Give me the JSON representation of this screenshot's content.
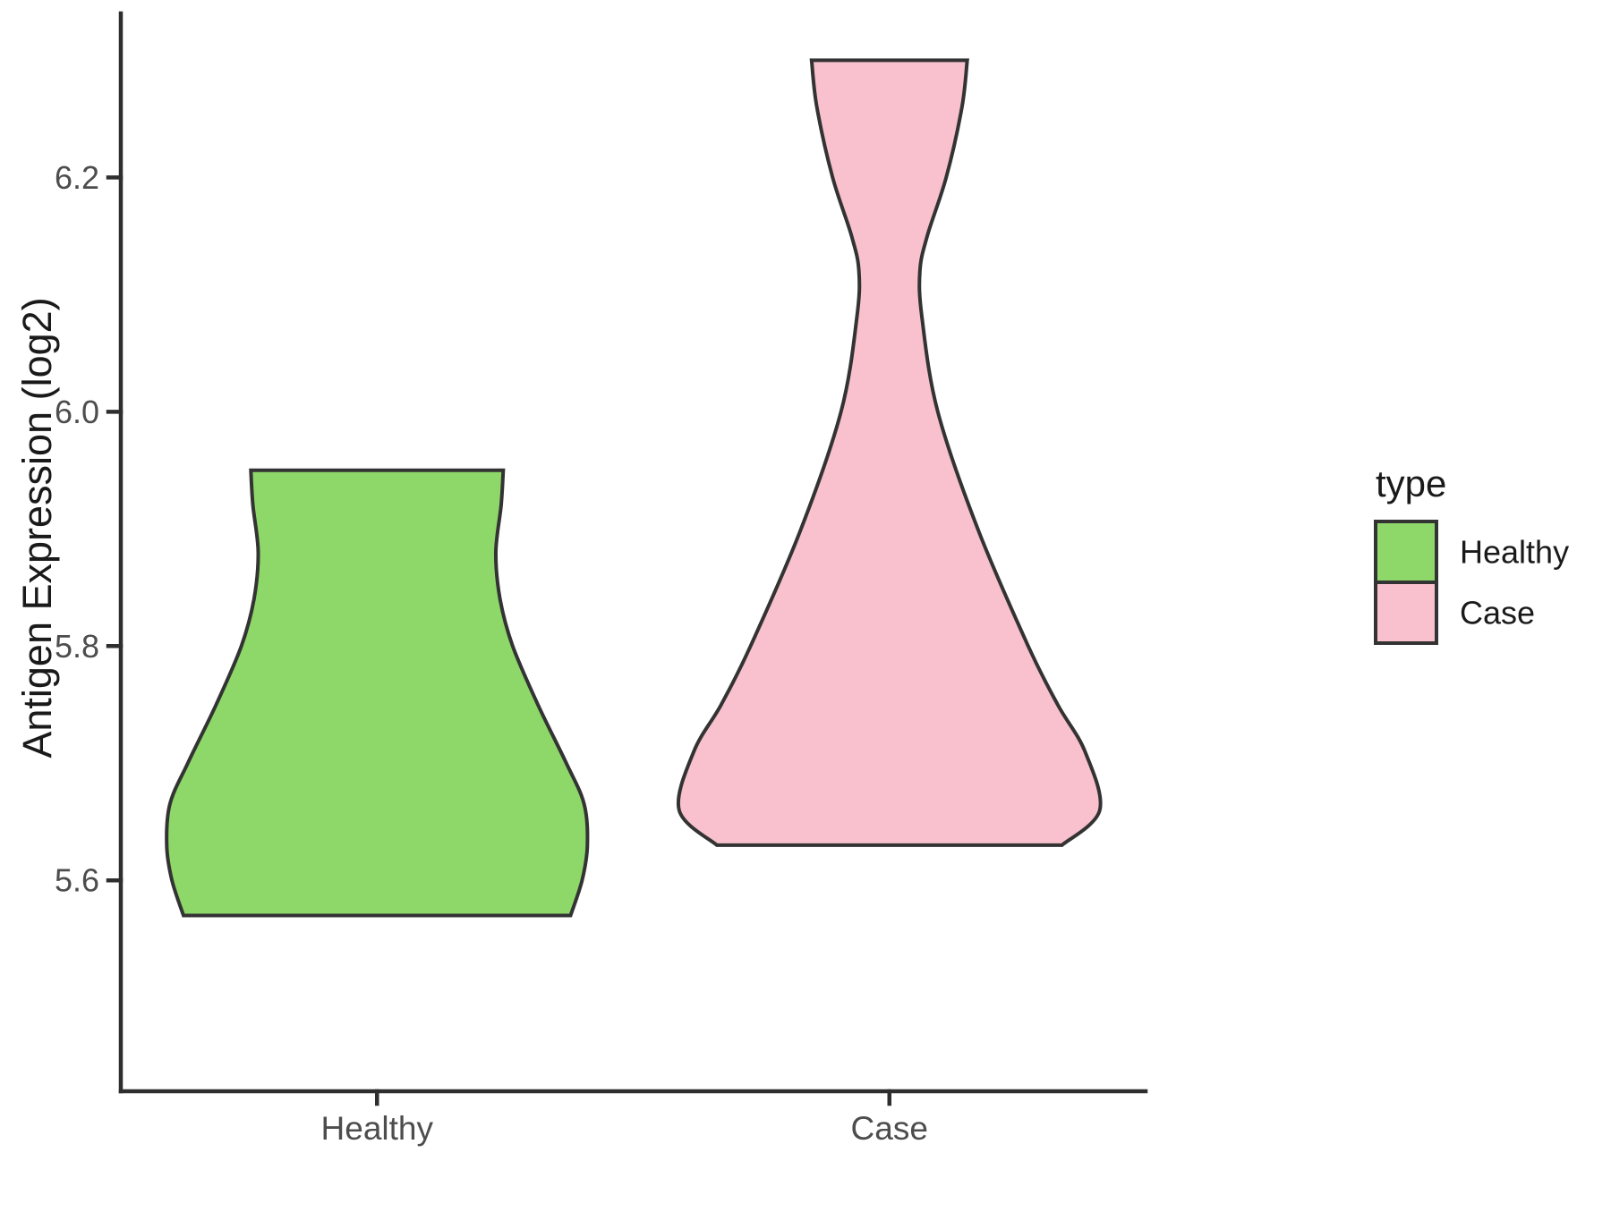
{
  "figure": {
    "background": "#ffffff",
    "kind": "violin plot"
  },
  "chart_data": {
    "type": "violin",
    "title": "",
    "xlabel": "",
    "ylabel": "Antigen Expression (log2)",
    "categories": [
      "Healthy",
      "Case"
    ],
    "ylim": [
      5.42,
      6.34
    ],
    "grid": "off",
    "legend_position": "right",
    "yticks": [
      {
        "value": 6.2,
        "label": "6.2"
      },
      {
        "value": 6.0,
        "label": "6.0"
      },
      {
        "value": 5.8,
        "label": "5.8"
      },
      {
        "value": 5.6,
        "label": "5.6"
      }
    ],
    "legend": {
      "title": "type",
      "entries": [
        "Healthy",
        "Case"
      ]
    },
    "series": [
      {
        "name": "Healthy",
        "fill": "#8ED86A",
        "value_min": 5.57,
        "value_max": 5.95,
        "truncated_flat_top": true,
        "truncated_flat_bottom": true,
        "density_profile": [
          [
            5.95,
            0.6
          ],
          [
            5.92,
            0.59
          ],
          [
            5.88,
            0.565
          ],
          [
            5.84,
            0.585
          ],
          [
            5.8,
            0.645
          ],
          [
            5.75,
            0.765
          ],
          [
            5.7,
            0.9
          ],
          [
            5.665,
            0.985
          ],
          [
            5.63,
            1.0
          ],
          [
            5.6,
            0.975
          ],
          [
            5.57,
            0.92
          ]
        ]
      },
      {
        "name": "Case",
        "fill": "#F8C1CD",
        "value_min": 5.63,
        "value_max": 6.3,
        "truncated_flat_top": true,
        "truncated_flat_bottom": true,
        "density_profile": [
          [
            6.3,
            0.37
          ],
          [
            6.26,
            0.345
          ],
          [
            6.2,
            0.27
          ],
          [
            6.15,
            0.18
          ],
          [
            6.12,
            0.145
          ],
          [
            6.08,
            0.155
          ],
          [
            6.0,
            0.23
          ],
          [
            5.9,
            0.42
          ],
          [
            5.8,
            0.66
          ],
          [
            5.75,
            0.8
          ],
          [
            5.71,
            0.93
          ],
          [
            5.66,
            1.0
          ],
          [
            5.63,
            0.82
          ]
        ]
      }
    ],
    "style": {
      "violin_outline": "#333333",
      "violin_outline_width": 4,
      "axis_color": "#2e2e2e",
      "axis_width": 4.5,
      "tick_length": 14,
      "tick_label_color": "#4d4d4d",
      "text_color": "#1a1a1a"
    }
  }
}
